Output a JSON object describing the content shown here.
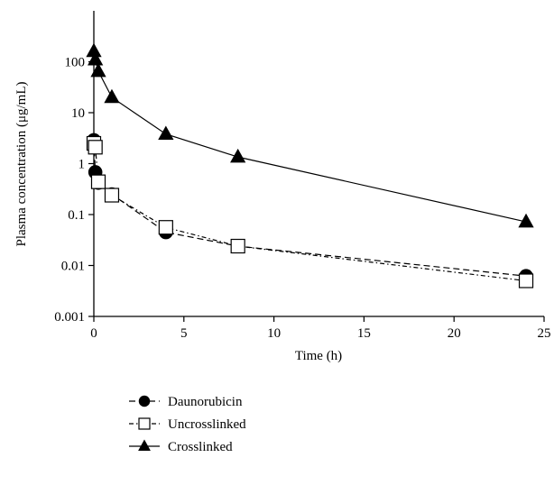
{
  "chart_data": {
    "type": "line",
    "title": "",
    "xlabel": "Time (h)",
    "ylabel": "Plasma concentration (μg/mL)",
    "xlim": [
      0,
      25
    ],
    "ylim": [
      0.001,
      1000
    ],
    "yscale": "log",
    "grid": false,
    "legend_position": "bottom-left",
    "x_ticks": [
      0,
      5,
      10,
      15,
      20,
      25
    ],
    "x_tick_labels": [
      "0",
      "5",
      "10",
      "15",
      "20",
      "25"
    ],
    "y_ticks": [
      0.001,
      0.01,
      0.1,
      1,
      10,
      100
    ],
    "y_tick_labels": [
      "0.001",
      "0.01",
      "0.1",
      "1",
      "10",
      "100"
    ],
    "series": [
      {
        "name": "Daunorubicin",
        "marker": "filled-circle",
        "line_style": "dashed",
        "color": "#000000",
        "x": [
          0,
          0.083,
          0.25,
          1,
          4,
          8,
          24
        ],
        "y": [
          2.9,
          0.68,
          0.42,
          0.25,
          0.045,
          0.024,
          0.0062
        ]
      },
      {
        "name": "Uncrosslinked",
        "marker": "open-square",
        "line_style": "dash-dot",
        "color": "#000000",
        "x": [
          0,
          0.083,
          0.25,
          1,
          4,
          8,
          24
        ],
        "y": [
          2.5,
          2.1,
          0.44,
          0.24,
          0.056,
          0.024,
          0.005
        ]
      },
      {
        "name": "Crosslinked",
        "marker": "filled-triangle",
        "line_style": "solid",
        "color": "#000000",
        "x": [
          0,
          0.083,
          0.25,
          1,
          4,
          8,
          24
        ],
        "y": [
          160,
          110,
          65,
          20,
          3.8,
          1.35,
          0.072
        ]
      }
    ]
  }
}
